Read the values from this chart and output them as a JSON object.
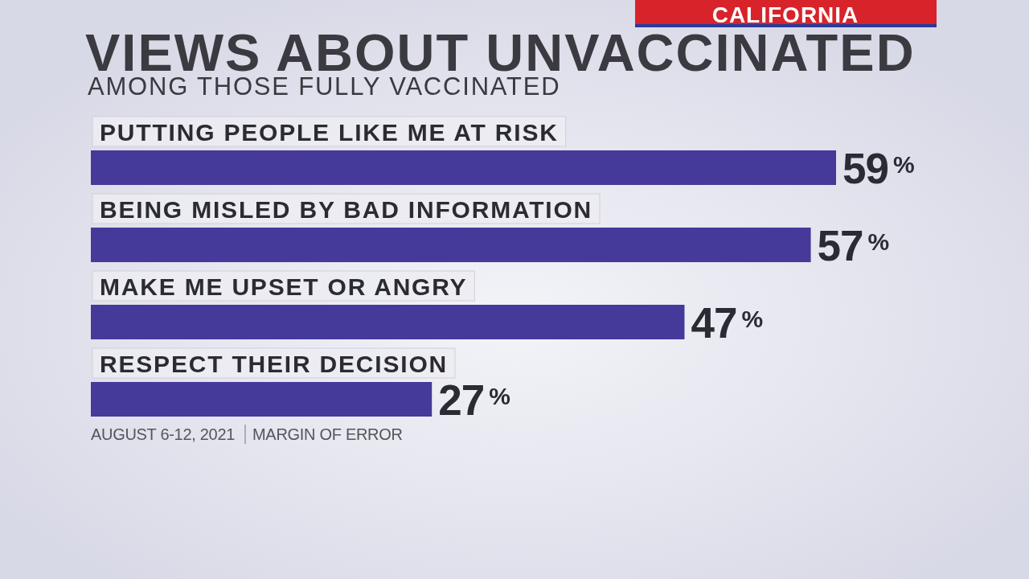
{
  "chart_data": {
    "type": "bar",
    "orientation": "horizontal",
    "title": "VIEWS ABOUT UNVACCINATED",
    "subtitle": "AMONG THOSE FULLY VACCINATED",
    "categories": [
      "PUTTING PEOPLE LIKE ME AT RISK",
      "BEING MISLED BY BAD INFORMATION",
      "MAKE ME UPSET OR ANGRY",
      "RESPECT THEIR DECISION"
    ],
    "values": [
      59,
      57,
      47,
      27
    ],
    "color": "#45399a",
    "value_labels": [
      "59$^{%}$",
      "57$^{%}$",
      "47$^{%}$",
      "27$^{%}$"
    ],
    "annotations": [
      "CALIFORNIA",
      "AUGUST 6-12, 2021",
      "MARGIN OF ERROR"
    ]
  }
}
